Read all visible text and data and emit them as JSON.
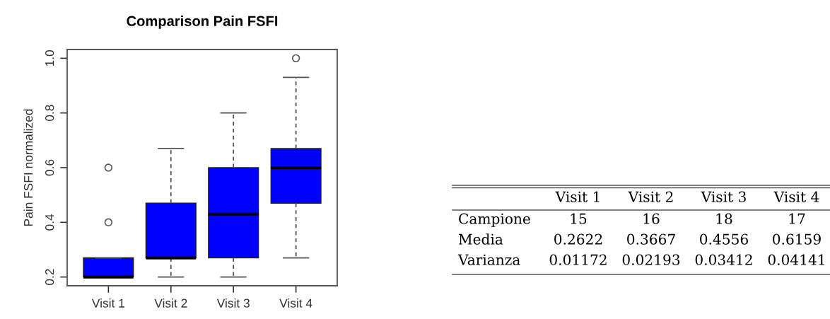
{
  "chart_data": [
    {
      "type": "box",
      "title": "Comparison Pain FSFI",
      "ylabel": "Pain FSFI normalized",
      "categories": [
        "Visit 1",
        "Visit 2",
        "Visit 3",
        "Visit 4"
      ],
      "series": [
        {
          "color": "#0000ff",
          "boxes": [
            {
              "low": 0.2,
              "q1": 0.2,
              "median": 0.2,
              "q3": 0.27,
              "high": 0.27,
              "outliers": [
                0.4,
                0.6
              ]
            },
            {
              "low": 0.2,
              "q1": 0.27,
              "median": 0.27,
              "q3": 0.47,
              "high": 0.67
            },
            {
              "low": 0.2,
              "q1": 0.27,
              "median": 0.43,
              "q3": 0.6,
              "high": 0.8
            },
            {
              "low": 0.27,
              "q1": 0.47,
              "median": 0.6,
              "q3": 0.67,
              "high": 0.93,
              "outliers": [
                1.0
              ]
            }
          ]
        }
      ],
      "ylim": [
        0.168,
        1.032
      ],
      "yticks": [
        0.2,
        0.4,
        0.6,
        0.8,
        {
          "value": 1,
          "label": "1.0"
        }
      ]
    },
    {
      "type": "other",
      "categories": [
        "Visit 1",
        "Visit 2",
        "Visit 3",
        "Visit 4"
      ],
      "y_categories": [
        "Campione",
        "Media",
        "Varianza"
      ],
      "cell_labels": [
        [
          "15",
          "16",
          "18",
          "17"
        ],
        [
          "0.2622",
          "0.3667",
          "0.4556",
          "0.6159"
        ],
        [
          "0.01172",
          "0.02193",
          "0.03412",
          "0.04141"
        ]
      ]
    }
  ]
}
